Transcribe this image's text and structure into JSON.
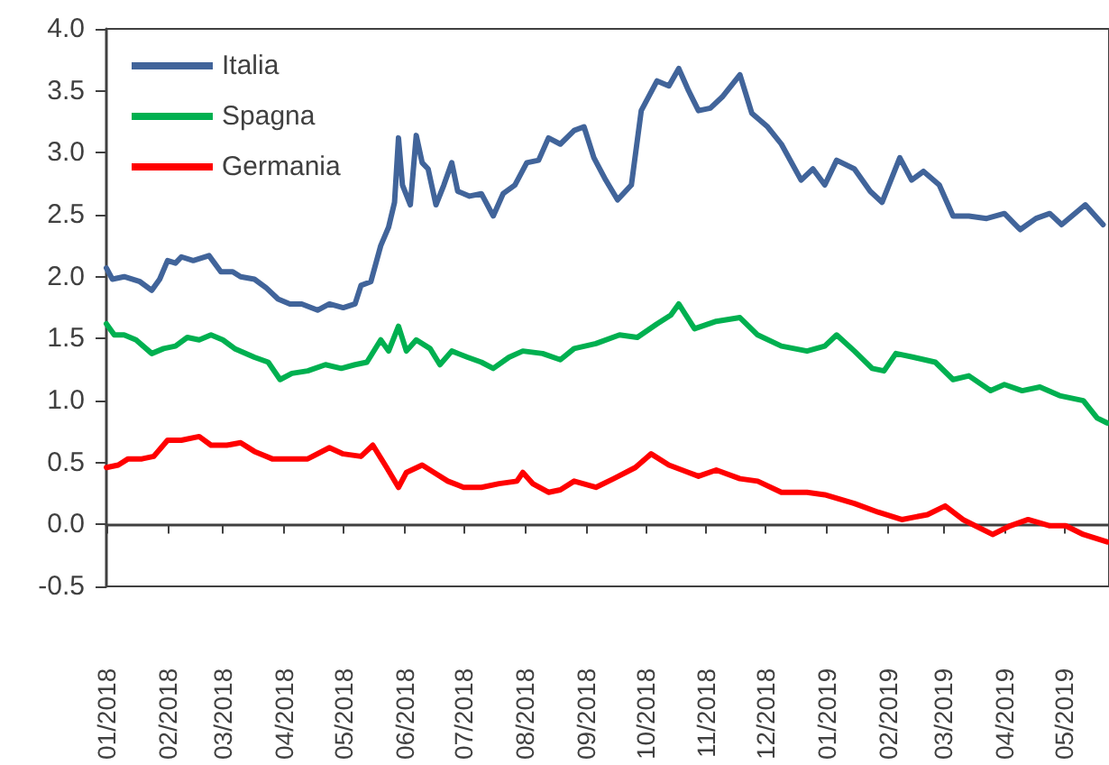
{
  "chart_data": {
    "type": "line",
    "legend": "top left",
    "xlim": [
      "2018-01-01",
      "2019-05-24"
    ],
    "xticks": [
      {
        "value": "2018-01-01",
        "label": "01/2018"
      },
      {
        "value": "2018-02-01",
        "label": "02/2018"
      },
      {
        "value": "2018-03-01",
        "label": "03/2018"
      },
      {
        "value": "2018-04-01",
        "label": "04/2018"
      },
      {
        "value": "2018-05-01",
        "label": "05/2018"
      },
      {
        "value": "2018-06-01",
        "label": "06/2018"
      },
      {
        "value": "2018-07-01",
        "label": "07/2018"
      },
      {
        "value": "2018-08-01",
        "label": "08/2018"
      },
      {
        "value": "2018-09-01",
        "label": "09/2018"
      },
      {
        "value": "2018-10-01",
        "label": "10/2018"
      },
      {
        "value": "2018-11-01",
        "label": "11/2018"
      },
      {
        "value": "2018-12-01",
        "label": "12/2018"
      },
      {
        "value": "2019-01-01",
        "label": "01/2019"
      },
      {
        "value": "2019-02-01",
        "label": "02/2019"
      },
      {
        "value": "2019-03-01",
        "label": "03/2019"
      },
      {
        "value": "2019-04-01",
        "label": "04/2019"
      },
      {
        "value": "2019-05-01",
        "label": "05/2019"
      }
    ],
    "ylim": [
      -0.5,
      4.0
    ],
    "yticks": [
      {
        "value": -0.5,
        "label": "-0.5"
      },
      {
        "value": 0,
        "label": "0.0"
      },
      {
        "value": 0.5,
        "label": "0.5"
      },
      {
        "value": 1,
        "label": "1.0"
      },
      {
        "value": 1.5,
        "label": "1.5"
      },
      {
        "value": 2,
        "label": "2.0"
      },
      {
        "value": 2.5,
        "label": "2.5"
      },
      {
        "value": 3,
        "label": "3.0"
      },
      {
        "value": 3.5,
        "label": "3.5"
      },
      {
        "value": 4,
        "label": "4.0"
      }
    ],
    "series": [
      {
        "name": "Italia",
        "color": "#41649a",
        "x": [
          "2018-01-01",
          "2018-01-04",
          "2018-01-10",
          "2018-01-18",
          "2018-01-24",
          "2018-01-28",
          "2018-02-01",
          "2018-02-05",
          "2018-02-08",
          "2018-02-14",
          "2018-02-22",
          "2018-02-28",
          "2018-03-06",
          "2018-03-10",
          "2018-03-17",
          "2018-03-23",
          "2018-03-29",
          "2018-04-04",
          "2018-04-10",
          "2018-04-18",
          "2018-04-24",
          "2018-05-01",
          "2018-05-07",
          "2018-05-10",
          "2018-05-15",
          "2018-05-20",
          "2018-05-24",
          "2018-05-27",
          "2018-05-29",
          "2018-05-31",
          "2018-06-04",
          "2018-06-07",
          "2018-06-10",
          "2018-06-13",
          "2018-06-17",
          "2018-06-21",
          "2018-06-25",
          "2018-06-28",
          "2018-07-04",
          "2018-07-10",
          "2018-07-16",
          "2018-07-21",
          "2018-07-27",
          "2018-08-02",
          "2018-08-08",
          "2018-08-13",
          "2018-08-19",
          "2018-08-26",
          "2018-08-31",
          "2018-09-05",
          "2018-09-11",
          "2018-09-17",
          "2018-09-24",
          "2018-09-29",
          "2018-10-07",
          "2018-10-13",
          "2018-10-18",
          "2018-10-23",
          "2018-10-28",
          "2018-11-03",
          "2018-11-09",
          "2018-11-18",
          "2018-11-24",
          "2018-12-02",
          "2018-12-09",
          "2018-12-19",
          "2018-12-25",
          "2018-12-31",
          "2019-01-06",
          "2019-01-15",
          "2019-01-23",
          "2019-01-29",
          "2019-02-07",
          "2019-02-13",
          "2019-02-19",
          "2019-02-27",
          "2019-03-06",
          "2019-03-14",
          "2019-03-23",
          "2019-04-01",
          "2019-04-09",
          "2019-04-17",
          "2019-04-24",
          "2019-04-30",
          "2019-05-12",
          "2019-05-21"
        ],
        "values": [
          2.07,
          1.98,
          2.0,
          1.96,
          1.89,
          1.98,
          2.13,
          2.11,
          2.16,
          2.13,
          2.17,
          2.04,
          2.04,
          2.0,
          1.98,
          1.91,
          1.82,
          1.78,
          1.78,
          1.73,
          1.78,
          1.75,
          1.78,
          1.93,
          1.96,
          2.25,
          2.4,
          2.6,
          3.12,
          2.74,
          2.58,
          3.14,
          2.92,
          2.87,
          2.58,
          2.74,
          2.92,
          2.69,
          2.65,
          2.67,
          2.49,
          2.67,
          2.74,
          2.92,
          2.94,
          3.12,
          3.07,
          3.18,
          3.21,
          2.96,
          2.78,
          2.62,
          2.74,
          3.34,
          3.58,
          3.54,
          3.68,
          3.5,
          3.34,
          3.36,
          3.45,
          3.63,
          3.32,
          3.21,
          3.07,
          2.78,
          2.87,
          2.74,
          2.94,
          2.87,
          2.69,
          2.6,
          2.96,
          2.78,
          2.85,
          2.74,
          2.49,
          2.49,
          2.47,
          2.51,
          2.38,
          2.47,
          2.51,
          2.42,
          2.58,
          2.42
        ]
      },
      {
        "name": "Spagna",
        "color": "#00b050",
        "x": [
          "2018-01-01",
          "2018-01-05",
          "2018-01-10",
          "2018-01-16",
          "2018-01-24",
          "2018-01-30",
          "2018-02-05",
          "2018-02-11",
          "2018-02-17",
          "2018-02-23",
          "2018-03-01",
          "2018-03-07",
          "2018-03-17",
          "2018-03-24",
          "2018-03-30",
          "2018-04-05",
          "2018-04-13",
          "2018-04-22",
          "2018-04-30",
          "2018-05-07",
          "2018-05-13",
          "2018-05-20",
          "2018-05-24",
          "2018-05-29",
          "2018-06-02",
          "2018-06-07",
          "2018-06-14",
          "2018-06-19",
          "2018-06-25",
          "2018-07-03",
          "2018-07-10",
          "2018-07-16",
          "2018-07-24",
          "2018-07-31",
          "2018-08-10",
          "2018-08-19",
          "2018-08-26",
          "2018-09-06",
          "2018-09-18",
          "2018-09-27",
          "2018-10-07",
          "2018-10-14",
          "2018-10-18",
          "2018-10-26",
          "2018-11-06",
          "2018-11-18",
          "2018-11-27",
          "2018-12-09",
          "2018-12-22",
          "2018-12-31",
          "2019-01-06",
          "2019-01-15",
          "2019-01-24",
          "2019-01-30",
          "2019-02-05",
          "2019-02-14",
          "2019-02-25",
          "2019-03-06",
          "2019-03-14",
          "2019-03-25",
          "2019-04-01",
          "2019-04-10",
          "2019-04-19",
          "2019-04-29",
          "2019-05-11",
          "2019-05-18",
          "2019-05-23"
        ],
        "values": [
          1.62,
          1.53,
          1.53,
          1.49,
          1.38,
          1.42,
          1.44,
          1.51,
          1.49,
          1.53,
          1.49,
          1.42,
          1.35,
          1.31,
          1.17,
          1.22,
          1.24,
          1.29,
          1.26,
          1.29,
          1.31,
          1.49,
          1.4,
          1.6,
          1.4,
          1.49,
          1.42,
          1.29,
          1.4,
          1.35,
          1.31,
          1.26,
          1.35,
          1.4,
          1.38,
          1.33,
          1.42,
          1.46,
          1.53,
          1.51,
          1.62,
          1.69,
          1.78,
          1.58,
          1.64,
          1.67,
          1.53,
          1.44,
          1.4,
          1.44,
          1.53,
          1.4,
          1.26,
          1.24,
          1.38,
          1.35,
          1.31,
          1.17,
          1.2,
          1.08,
          1.13,
          1.08,
          1.11,
          1.04,
          1.0,
          0.86,
          0.82
        ]
      },
      {
        "name": "Germania",
        "color": "#ff0000",
        "x": [
          "2018-01-01",
          "2018-01-07",
          "2018-01-12",
          "2018-01-19",
          "2018-01-25",
          "2018-02-01",
          "2018-02-08",
          "2018-02-17",
          "2018-02-23",
          "2018-03-03",
          "2018-03-10",
          "2018-03-17",
          "2018-03-26",
          "2018-04-04",
          "2018-04-13",
          "2018-04-24",
          "2018-05-01",
          "2018-05-10",
          "2018-05-16",
          "2018-05-23",
          "2018-05-29",
          "2018-06-02",
          "2018-06-10",
          "2018-06-16",
          "2018-06-23",
          "2018-07-01",
          "2018-07-10",
          "2018-07-19",
          "2018-07-28",
          "2018-07-31",
          "2018-08-05",
          "2018-08-13",
          "2018-08-19",
          "2018-08-26",
          "2018-09-06",
          "2018-09-15",
          "2018-09-26",
          "2018-10-04",
          "2018-10-13",
          "2018-10-28",
          "2018-11-06",
          "2018-11-18",
          "2018-11-27",
          "2018-12-09",
          "2018-12-22",
          "2018-12-31",
          "2019-01-15",
          "2019-01-27",
          "2019-02-08",
          "2019-02-21",
          "2019-03-02",
          "2019-03-11",
          "2019-03-26",
          "2019-04-04",
          "2019-04-13",
          "2019-04-24",
          "2019-05-02",
          "2019-05-11",
          "2019-05-23"
        ],
        "values": [
          0.46,
          0.48,
          0.53,
          0.53,
          0.55,
          0.68,
          0.68,
          0.71,
          0.64,
          0.64,
          0.66,
          0.59,
          0.53,
          0.53,
          0.53,
          0.62,
          0.57,
          0.55,
          0.64,
          0.46,
          0.3,
          0.42,
          0.48,
          0.42,
          0.35,
          0.3,
          0.3,
          0.33,
          0.35,
          0.42,
          0.33,
          0.26,
          0.28,
          0.35,
          0.3,
          0.37,
          0.46,
          0.57,
          0.48,
          0.39,
          0.44,
          0.37,
          0.35,
          0.26,
          0.26,
          0.24,
          0.17,
          0.1,
          0.04,
          0.08,
          0.15,
          0.04,
          -0.08,
          -0.01,
          0.04,
          -0.01,
          -0.01,
          -0.08,
          -0.14
        ]
      }
    ]
  }
}
